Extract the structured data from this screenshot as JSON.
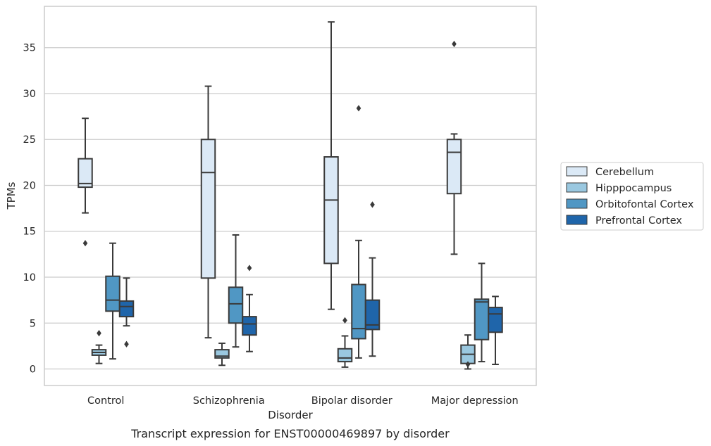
{
  "chart_data": {
    "type": "box",
    "title": "",
    "caption": "Transcript expression for ENST00000469897 by disorder",
    "xlabel": "Disorder",
    "ylabel": "TPMs",
    "ylim": [
      -1.8,
      39.5
    ],
    "yticks": [
      0,
      5,
      10,
      15,
      20,
      25,
      30,
      35
    ],
    "grid": "horizontal",
    "legend_position": "right",
    "categories": [
      "Control",
      "Schizophrenia",
      "Bipolar disorder",
      "Major depression"
    ],
    "series": [
      {
        "name": "Cerebellum",
        "color": "#dbe9f6",
        "boxes": [
          {
            "whislo": 17.0,
            "q1": 19.8,
            "med": 20.2,
            "q3": 22.9,
            "whishi": 27.3,
            "fliers": [
              13.7
            ]
          },
          {
            "whislo": 3.4,
            "q1": 9.9,
            "med": 21.4,
            "q3": 25.0,
            "whishi": 30.8,
            "fliers": []
          },
          {
            "whislo": 6.5,
            "q1": 11.5,
            "med": 18.4,
            "q3": 23.1,
            "whishi": 37.8,
            "fliers": []
          },
          {
            "whislo": 12.5,
            "q1": 19.1,
            "med": 23.6,
            "q3": 25.0,
            "whishi": 25.6,
            "fliers": [
              35.4
            ]
          }
        ]
      },
      {
        "name": "Hipppocampus",
        "color": "#9ac8e0",
        "boxes": [
          {
            "whislo": 0.6,
            "q1": 1.5,
            "med": 1.8,
            "q3": 2.1,
            "whishi": 2.6,
            "fliers": [
              3.9
            ]
          },
          {
            "whislo": 0.4,
            "q1": 1.2,
            "med": 1.4,
            "q3": 2.1,
            "whishi": 2.8,
            "fliers": []
          },
          {
            "whislo": 0.2,
            "q1": 0.8,
            "med": 1.2,
            "q3": 2.2,
            "whishi": 3.6,
            "fliers": [
              5.3
            ]
          },
          {
            "whislo": 0.0,
            "q1": 0.6,
            "med": 1.6,
            "q3": 2.6,
            "whishi": 3.7,
            "fliers": [
              0.5
            ]
          }
        ]
      },
      {
        "name": "Orbitofontal Cortex",
        "color": "#5097c4",
        "boxes": [
          {
            "whislo": 1.1,
            "q1": 6.3,
            "med": 7.5,
            "q3": 10.1,
            "whishi": 13.7,
            "fliers": []
          },
          {
            "whislo": 2.4,
            "q1": 5.0,
            "med": 7.1,
            "q3": 8.9,
            "whishi": 14.6,
            "fliers": []
          },
          {
            "whislo": 1.2,
            "q1": 3.3,
            "med": 4.4,
            "q3": 9.2,
            "whishi": 14.0,
            "fliers": [
              28.4
            ]
          },
          {
            "whislo": 0.8,
            "q1": 3.2,
            "med": 7.3,
            "q3": 7.6,
            "whishi": 11.5,
            "fliers": []
          }
        ]
      },
      {
        "name": "Prefrontal Cortex",
        "color": "#1f65aa",
        "boxes": [
          {
            "whislo": 4.7,
            "q1": 5.7,
            "med": 6.8,
            "q3": 7.4,
            "whishi": 9.9,
            "fliers": [
              2.7
            ]
          },
          {
            "whislo": 1.9,
            "q1": 3.7,
            "med": 4.9,
            "q3": 5.7,
            "whishi": 8.1,
            "fliers": [
              11.0
            ]
          },
          {
            "whislo": 1.4,
            "q1": 4.3,
            "med": 4.8,
            "q3": 7.5,
            "whishi": 12.1,
            "fliers": [
              17.9
            ]
          },
          {
            "whislo": 0.5,
            "q1": 4.0,
            "med": 6.0,
            "q3": 6.7,
            "whishi": 7.9,
            "fliers": []
          }
        ]
      }
    ]
  }
}
